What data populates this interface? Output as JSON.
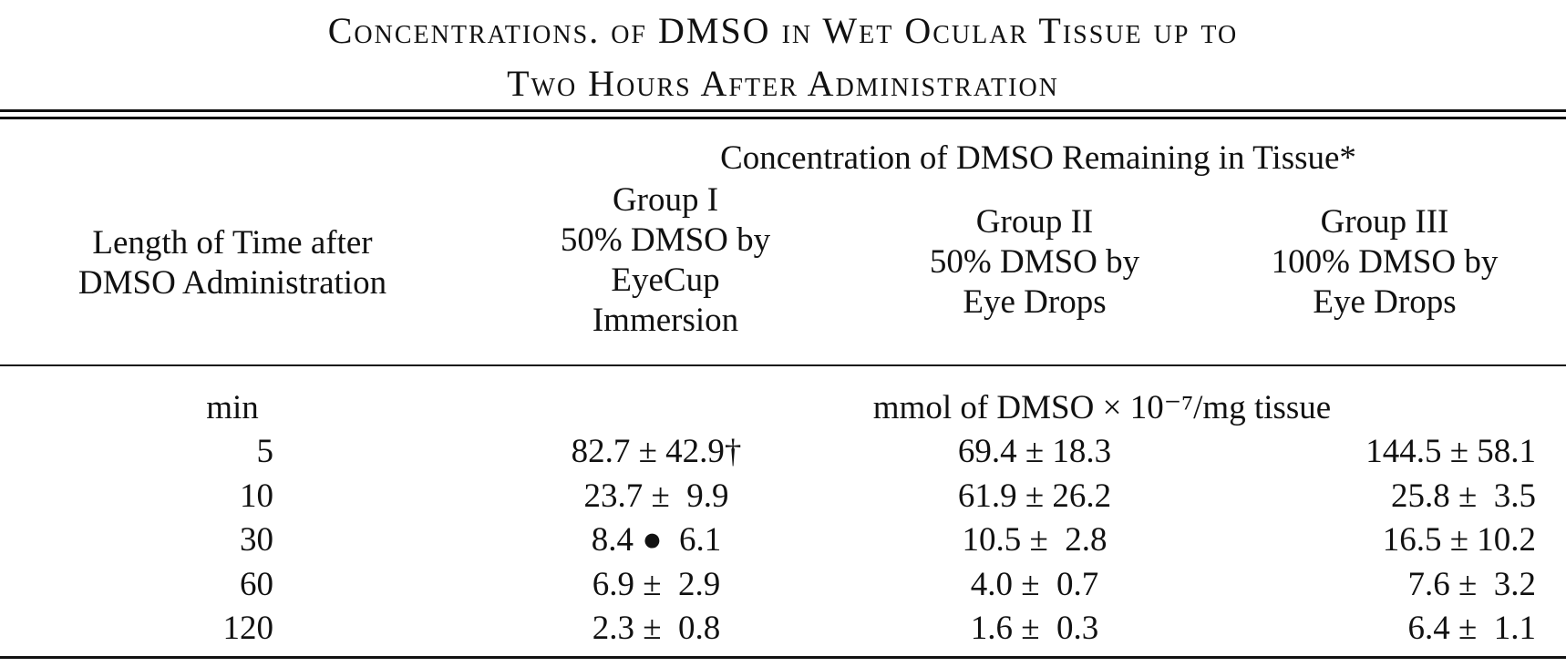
{
  "title": {
    "line1": "Concentrations. of DMSO in Wet Ocular Tissue up to",
    "line2": "Two Hours After Administration"
  },
  "table": {
    "spanner": "Concentration of DMSO Remaining in Tissue*",
    "stub_head": [
      "Length of Time after",
      "DMSO Administration"
    ],
    "groups": [
      {
        "lines": [
          "Group I",
          "50% DMSO by",
          "EyeCup",
          "Immersion"
        ]
      },
      {
        "lines": [
          "Group II",
          "50% DMSO by",
          "Eye Drops"
        ]
      },
      {
        "lines": [
          "Group III",
          "100% DMSO by",
          "Eye Drops"
        ]
      }
    ],
    "unit_time": "min",
    "unit_value": "mmol of DMSO × 10⁻⁷/mg tissue",
    "rows": [
      {
        "time": "5",
        "g1": "82.7 ± 42.9†",
        "g2": "69.4 ± 18.3",
        "g3": "144.5 ± 58.1"
      },
      {
        "time": "10",
        "g1": "23.7 ±  9.9",
        "g2": "61.9 ± 26.2",
        "g3": "25.8 ±  3.5"
      },
      {
        "time": "30",
        "g1": "8.4 ●  6.1",
        "g2": "10.5 ±  2.8",
        "g3": "16.5 ± 10.2"
      },
      {
        "time": "60",
        "g1": "6.9 ±  2.9",
        "g2": "4.0 ±  0.7",
        "g3": "7.6 ±  3.2"
      },
      {
        "time": "120",
        "g1": "2.3 ±  0.8",
        "g2": "1.6 ±  0.3",
        "g3": "6.4 ±  1.1"
      }
    ]
  }
}
